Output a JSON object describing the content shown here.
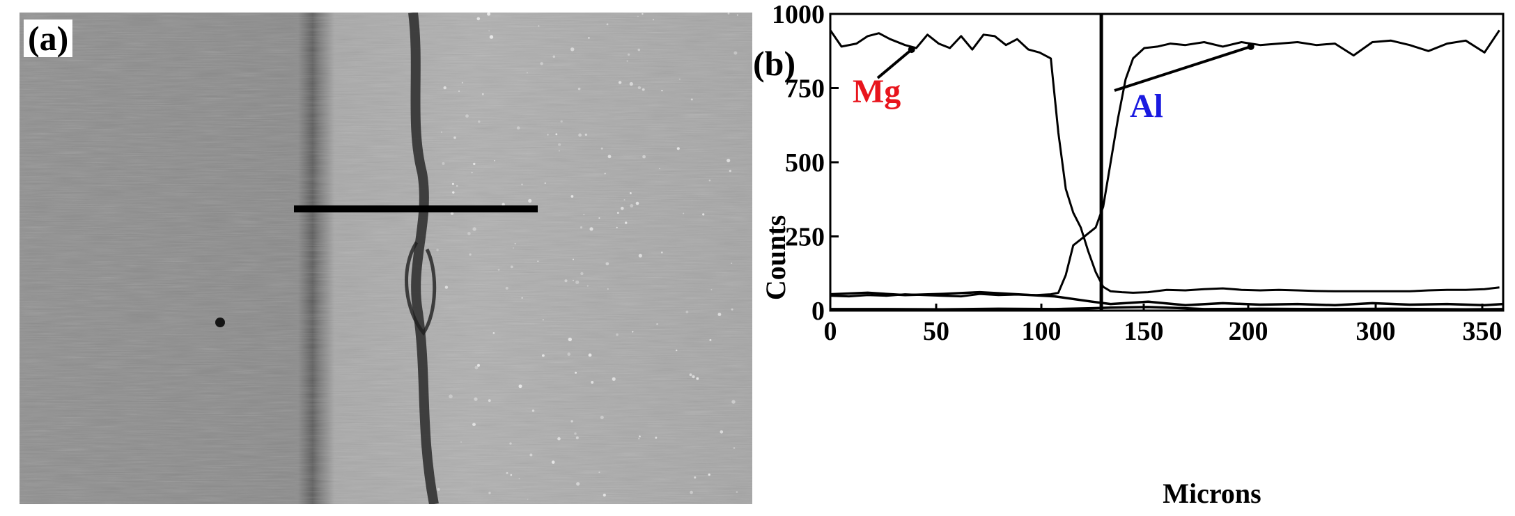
{
  "figure": {
    "panel_a_label": "(a)",
    "panel_b_label": "(b)"
  },
  "micrograph": {
    "content": "SEM micrograph of Mg/Al weld interface with line-scan marker"
  },
  "colors": {
    "mg_label": "#e8141c",
    "al_label": "#1a1ae0",
    "line": "#000000"
  },
  "chart_data": {
    "type": "line",
    "xlabel": "Microns",
    "ylabel": "Counts",
    "xlim": [
      0,
      360
    ],
    "ylim": [
      0,
      1000
    ],
    "x_tick_labels": [
      "0",
      "50",
      "100",
      "150",
      "200",
      "300",
      "350"
    ],
    "y_tick_labels": [
      "0",
      "250",
      "500",
      "750",
      "1000"
    ],
    "y_ticks": [
      0,
      250,
      500,
      750,
      1000
    ],
    "interface_x": 145,
    "grid": false,
    "series": [
      {
        "name": "Mg",
        "label_color": "#e8141c",
        "annotation_point": [
          43.5,
          880
        ],
        "x": [
          0,
          6,
          14,
          20,
          26,
          32,
          40,
          46,
          52,
          58,
          64,
          70,
          76,
          82,
          88,
          94,
          100,
          106,
          112,
          118,
          122,
          126,
          130,
          134,
          138,
          142,
          146,
          150,
          156,
          162,
          170,
          180,
          190,
          200,
          210,
          220,
          230,
          240,
          250,
          260,
          270,
          280,
          290,
          300,
          310,
          320,
          330,
          340,
          350,
          358
        ],
        "y": [
          945,
          890,
          900,
          925,
          935,
          915,
          895,
          885,
          930,
          900,
          885,
          925,
          880,
          930,
          925,
          895,
          915,
          880,
          870,
          850,
          600,
          410,
          330,
          280,
          200,
          130,
          80,
          65,
          62,
          60,
          62,
          70,
          68,
          72,
          75,
          70,
          68,
          70,
          68,
          66,
          65,
          65,
          65,
          65,
          65,
          68,
          70,
          70,
          72,
          78
        ]
      },
      {
        "name": "Al",
        "label_color": "#1a1ae0",
        "annotation_point": [
          225,
          890
        ],
        "x": [
          0,
          10,
          20,
          30,
          40,
          50,
          60,
          70,
          80,
          90,
          100,
          110,
          118,
          122,
          126,
          130,
          134,
          138,
          142,
          146,
          150,
          154,
          158,
          162,
          168,
          175,
          182,
          190,
          200,
          210,
          220,
          230,
          240,
          250,
          260,
          270,
          280,
          290,
          300,
          310,
          320,
          330,
          340,
          350,
          358
        ],
        "y": [
          50,
          48,
          52,
          50,
          55,
          52,
          50,
          48,
          56,
          52,
          54,
          52,
          55,
          60,
          120,
          220,
          240,
          260,
          280,
          350,
          500,
          650,
          780,
          850,
          885,
          890,
          900,
          895,
          905,
          890,
          905,
          895,
          900,
          905,
          895,
          900,
          860,
          905,
          910,
          895,
          875,
          900,
          910,
          870,
          945
        ]
      },
      {
        "name": "",
        "x": [
          0,
          20,
          40,
          60,
          80,
          100,
          120,
          140,
          150,
          170,
          190,
          210,
          230,
          250,
          270,
          290,
          310,
          330,
          350,
          360
        ],
        "y": [
          55,
          60,
          52,
          56,
          62,
          55,
          48,
          30,
          22,
          30,
          18,
          25,
          20,
          22,
          18,
          25,
          20,
          22,
          18,
          22
        ]
      },
      {
        "name": "",
        "x": [
          0,
          30,
          60,
          90,
          120,
          140,
          150,
          170,
          190,
          200,
          230,
          260,
          300,
          340,
          360
        ],
        "y": [
          5,
          5,
          4,
          6,
          5,
          8,
          10,
          12,
          8,
          5,
          6,
          5,
          6,
          4,
          5
        ]
      }
    ]
  }
}
